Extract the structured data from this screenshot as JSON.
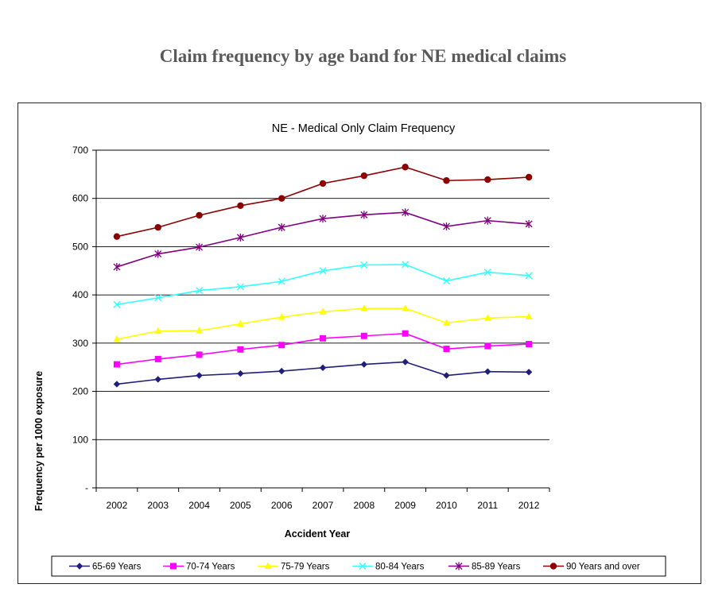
{
  "page": {
    "title": "Claim frequency by age band for NE medical claims"
  },
  "chart_data": {
    "type": "line",
    "title": "NE - Medical Only Claim Frequency",
    "xlabel": "Accident Year",
    "ylabel": "Frequency per 1000 exposure",
    "categories": [
      "2002",
      "2003",
      "2004",
      "2005",
      "2006",
      "2007",
      "2008",
      "2009",
      "2010",
      "2011",
      "2012"
    ],
    "ylim": [
      0,
      700
    ],
    "yticks": [
      {
        "value": 0,
        "label": "-"
      },
      {
        "value": 100,
        "label": "100"
      },
      {
        "value": 200,
        "label": "200"
      },
      {
        "value": 300,
        "label": "300"
      },
      {
        "value": 400,
        "label": "400"
      },
      {
        "value": 500,
        "label": "500"
      },
      {
        "value": 600,
        "label": "600"
      },
      {
        "value": 700,
        "label": "700"
      }
    ],
    "grid": true,
    "legend_position": "bottom",
    "series": [
      {
        "name": "65-69 Years",
        "color": "#1f1f7a",
        "marker": "diamond",
        "values": [
          215,
          225,
          233,
          237,
          242,
          249,
          256,
          261,
          233,
          241,
          240
        ]
      },
      {
        "name": "70-74 Years",
        "color": "#ff00ff",
        "marker": "square",
        "values": [
          256,
          267,
          276,
          287,
          296,
          310,
          315,
          320,
          288,
          294,
          298
        ]
      },
      {
        "name": "75-79 Years",
        "color": "#ffff00",
        "marker": "triangle",
        "values": [
          308,
          325,
          326,
          340,
          354,
          365,
          372,
          372,
          342,
          352,
          355
        ]
      },
      {
        "name": "80-84 Years",
        "color": "#33ffff",
        "marker": "x",
        "values": [
          380,
          394,
          409,
          417,
          428,
          450,
          462,
          463,
          429,
          447,
          440
        ]
      },
      {
        "name": "85-89 Years",
        "color": "#800080",
        "marker": "star",
        "values": [
          458,
          485,
          499,
          519,
          540,
          558,
          566,
          571,
          542,
          554,
          547
        ]
      },
      {
        "name": "90 Years and over",
        "color": "#8b0000",
        "marker": "circle",
        "values": [
          521,
          540,
          565,
          585,
          600,
          631,
          647,
          665,
          637,
          639,
          644
        ]
      }
    ]
  }
}
